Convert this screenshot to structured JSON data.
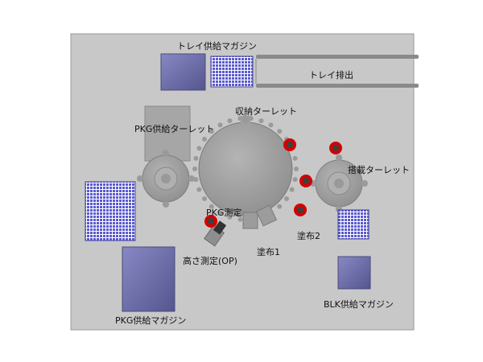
{
  "labels": {
    "tray_supply_magazine": "トレイ供給マガジン",
    "tray_discharge": "トレイ排出",
    "storage_turret": "収納ターレット",
    "pkg_supply_turret": "PKG供給ターレット",
    "mounting_turret": "搭載ターレット",
    "pkg_measurement": "PKG測定",
    "coating_2": "塗布2",
    "coating_1": "塗布1",
    "height_measurement": "高さ測定(OP)",
    "blk_supply_magazine": "BLK供給マガジン",
    "pkg_supply_magazine": "PKG供給マガジン"
  },
  "colors": {
    "base_plate": "#c8c8c8",
    "turret": "#a3a3a3",
    "magazine": "#6a6aa4",
    "tray_grid": "#5a5ad0",
    "marker_ring": "#d40000"
  }
}
